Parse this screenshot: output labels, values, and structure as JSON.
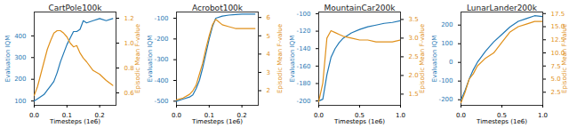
{
  "chart_data": [
    {
      "type": "line",
      "title": "CartPole100k",
      "xlabel": "Timesteps (1e6)",
      "x": [
        0,
        0.01,
        0.02,
        0.03,
        0.04,
        0.05,
        0.06,
        0.07,
        0.08,
        0.09,
        0.1,
        0.11,
        0.12,
        0.13,
        0.14,
        0.15,
        0.16,
        0.18,
        0.2,
        0.22,
        0.24
      ],
      "xlim": [
        0,
        0.25
      ],
      "xticks": [
        {
          "value": 0,
          "label": "0.0"
        },
        0.1,
        0.2
      ],
      "ylim": [
        80,
        510
      ],
      "yticks": [
        100,
        200,
        300,
        400
      ],
      "y2lim": [
        0.5,
        1.25
      ],
      "y2ticks": [
        0.6,
        0.8,
        {
          "value": 1,
          "label": "1.0"
        },
        1.2
      ],
      "series": [
        {
          "name": "Evaluation IQM",
          "color": "#1f77b4",
          "values": [
            100,
            110,
            120,
            130,
            150,
            170,
            190,
            230,
            280,
            320,
            360,
            390,
            420,
            420,
            430,
            470,
            460,
            470,
            480,
            470,
            480
          ]
        },
        {
          "name": "Episodic Mean F-value",
          "color": "#e0901a",
          "axis": "y2",
          "values": [
            0.58,
            0.65,
            0.75,
            0.85,
            0.95,
            1.02,
            1.08,
            1.1,
            1.1,
            1.08,
            1.05,
            1.0,
            0.97,
            0.98,
            0.92,
            0.88,
            0.85,
            0.78,
            0.75,
            0.7,
            0.66
          ]
        }
      ]
    },
    {
      "type": "line",
      "title": "Acrobot100k",
      "xlabel": "Timesteps (1e6)",
      "x": [
        0,
        0.02,
        0.04,
        0.05,
        0.06,
        0.07,
        0.08,
        0.09,
        0.1,
        0.11,
        0.12,
        0.14,
        0.16,
        0.18,
        0.2,
        0.22,
        0.24
      ],
      "xlim": [
        0,
        0.25
      ],
      "xticks": [
        {
          "value": 0,
          "label": "0.0"
        },
        0.1,
        0.2
      ],
      "ylim": [
        -520,
        -70
      ],
      "yticks": [
        -500,
        -400,
        -300,
        -200,
        -100
      ],
      "y2lim": [
        1.2,
        6.3
      ],
      "y2ticks": [
        2,
        3,
        4,
        5,
        6
      ],
      "series": [
        {
          "name": "Evaluation IQM",
          "color": "#1f77b4",
          "values": [
            -500,
            -490,
            -480,
            -470,
            -440,
            -400,
            -340,
            -270,
            -200,
            -140,
            -100,
            -90,
            -85,
            -82,
            -80,
            -80,
            -80
          ]
        },
        {
          "name": "Episodic Mean F-value",
          "color": "#e0901a",
          "axis": "y2",
          "values": [
            1.5,
            1.6,
            1.8,
            2.0,
            2.3,
            2.9,
            3.5,
            4.3,
            5.0,
            5.6,
            5.9,
            5.6,
            5.5,
            5.4,
            5.4,
            5.4,
            5.4
          ]
        }
      ]
    },
    {
      "type": "line",
      "title": "MountainCar200k",
      "xlabel": "Timesteps (1e6)",
      "x": [
        0,
        0.05,
        0.1,
        0.15,
        0.2,
        0.25,
        0.3,
        0.4,
        0.5,
        0.6,
        0.7,
        0.8,
        0.9,
        1.0
      ],
      "xlim": [
        0,
        1
      ],
      "xticks": [
        {
          "value": 0,
          "label": "0.0"
        },
        0.5,
        {
          "value": 1,
          "label": "1.0"
        }
      ],
      "ylim": [
        -205,
        -98
      ],
      "yticks": [
        -200,
        -180,
        -160,
        -140,
        -120,
        -100
      ],
      "y2lim": [
        1.2,
        3.7
      ],
      "y2ticks": [
        1.5,
        {
          "value": 2,
          "label": "2.0"
        },
        2.5,
        {
          "value": 3,
          "label": "3.0"
        },
        3.5
      ],
      "series": [
        {
          "name": "Evaluation IQM",
          "color": "#1f77b4",
          "values": [
            -200,
            -198,
            -170,
            -150,
            -140,
            -133,
            -128,
            -122,
            -118,
            -115,
            -113,
            -111,
            -110,
            -108
          ]
        },
        {
          "name": "Episodic Mean F-value",
          "color": "#e0901a",
          "axis": "y2",
          "values": [
            1.3,
            1.8,
            3.0,
            3.2,
            3.15,
            3.1,
            3.05,
            3.0,
            2.95,
            2.95,
            2.9,
            2.9,
            2.9,
            2.95
          ]
        }
      ]
    },
    {
      "type": "line",
      "title": "LunarLander200k",
      "xlabel": "Timesteps (1e6)",
      "x": [
        0,
        0.05,
        0.1,
        0.15,
        0.2,
        0.3,
        0.4,
        0.5,
        0.6,
        0.7,
        0.8,
        0.9,
        1.0
      ],
      "xlim": [
        0,
        1
      ],
      "xticks": [
        {
          "value": 0,
          "label": "0.0"
        },
        0.5,
        {
          "value": 1,
          "label": "1.0"
        }
      ],
      "ylim": [
        -230,
        270
      ],
      "yticks": [
        -200,
        -100,
        0,
        100,
        200
      ],
      "y2lim": [
        0,
        17.8
      ],
      "y2ticks": [
        2.5,
        {
          "value": 5,
          "label": "5.0"
        },
        7.5,
        {
          "value": 10,
          "label": "10.0"
        },
        12.5,
        {
          "value": 15,
          "label": "15.0"
        },
        17.5
      ],
      "series": [
        {
          "name": "Evaluation IQM",
          "color": "#1f77b4",
          "values": [
            -200,
            -150,
            -90,
            -40,
            0,
            60,
            110,
            150,
            190,
            220,
            235,
            250,
            245
          ]
        },
        {
          "name": "Episodic Mean F-value",
          "color": "#e0901a",
          "axis": "y2",
          "values": [
            0.5,
            2.5,
            5,
            6,
            7.5,
            9,
            10,
            12,
            14,
            15,
            15.5,
            16,
            16
          ]
        }
      ]
    }
  ]
}
